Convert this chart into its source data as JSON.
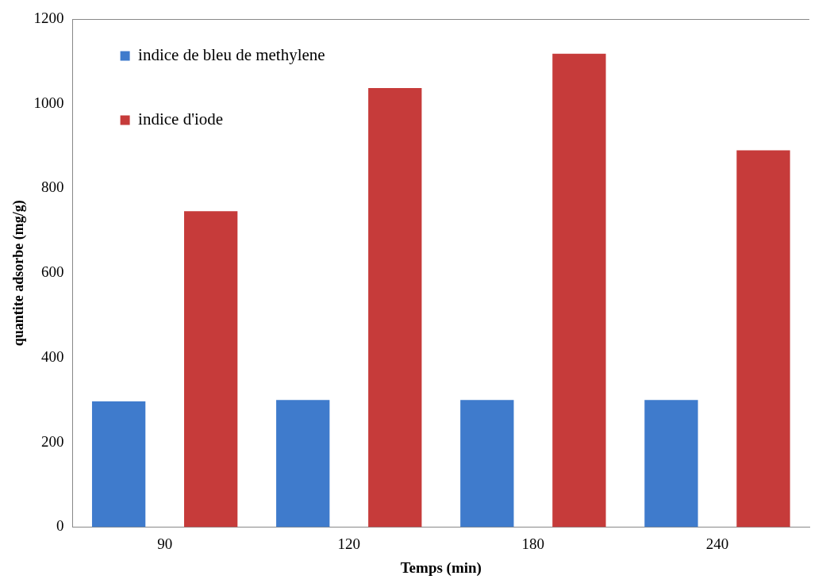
{
  "chart_data": {
    "type": "bar",
    "xlabel": "Temps (min)",
    "ylabel": "quantite adsorbe (mg/g)",
    "categories": [
      "90",
      "120",
      "180",
      "240"
    ],
    "series": [
      {
        "name": "indice de bleu de methylene",
        "color": "#3f7bcc",
        "values": [
          297,
          300,
          300,
          300
        ]
      },
      {
        "name": "indice d'iode",
        "color": "#c63b3a",
        "values": [
          746,
          1037,
          1118,
          890
        ]
      }
    ],
    "ylim": [
      0,
      1200
    ],
    "yticks": [
      0,
      200,
      400,
      600,
      800,
      1000,
      1200
    ],
    "grid": false,
    "legend": "top left"
  }
}
